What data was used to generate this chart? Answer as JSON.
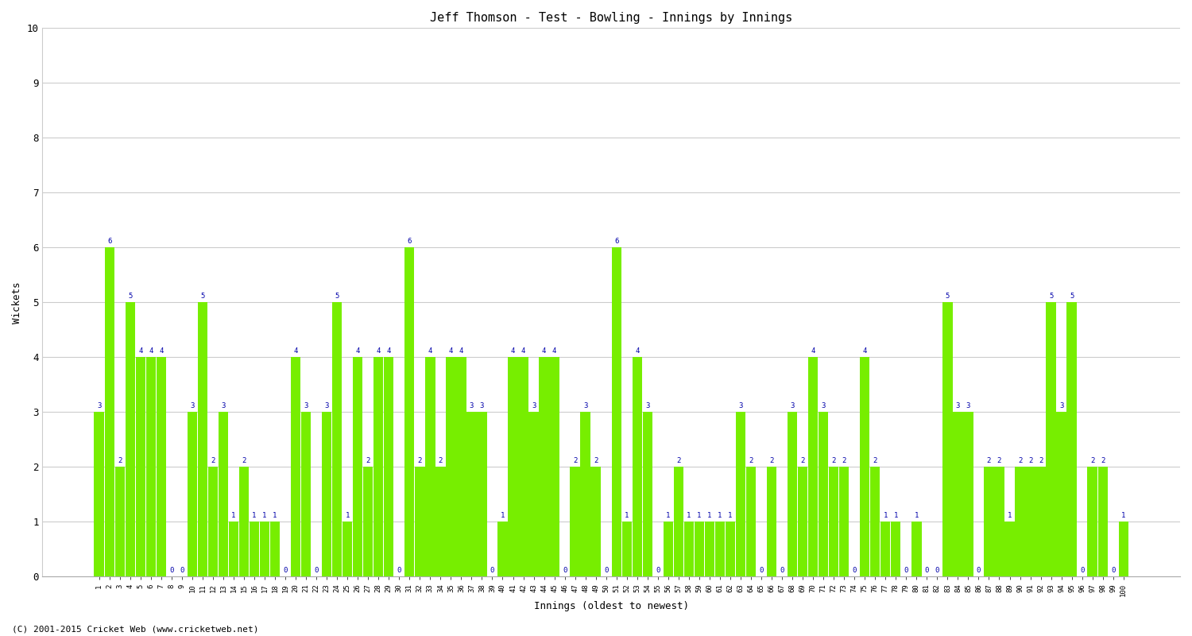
{
  "title": "Jeff Thomson - Test - Bowling - Innings by Innings",
  "xlabel": "Innings (oldest to newest)",
  "ylabel": "Wickets",
  "bar_color": "#77ee00",
  "label_color": "#0000aa",
  "background_color": "#ffffff",
  "plot_background": "#ffffff",
  "grid_color": "#cccccc",
  "ylim": [
    0,
    10
  ],
  "yticks": [
    0,
    1,
    2,
    3,
    4,
    5,
    6,
    7,
    8,
    9,
    10
  ],
  "footer": "(C) 2001-2015 Cricket Web (www.cricketweb.net)",
  "categories": [
    "1",
    "2",
    "3",
    "4",
    "5",
    "6",
    "7",
    "8",
    "9",
    "10",
    "11",
    "12",
    "13",
    "14",
    "15",
    "16",
    "17",
    "18",
    "19",
    "20",
    "21",
    "22",
    "23",
    "24",
    "25",
    "26",
    "27",
    "28",
    "29",
    "30",
    "31",
    "32",
    "33",
    "34",
    "35",
    "36",
    "37",
    "38",
    "39",
    "40",
    "41",
    "42",
    "43",
    "44",
    "45",
    "46",
    "47",
    "48",
    "49",
    "50",
    "51",
    "52",
    "53",
    "54",
    "55",
    "56",
    "57",
    "58",
    "59",
    "60",
    "61",
    "62",
    "63",
    "64",
    "65",
    "66",
    "67",
    "68",
    "69",
    "70",
    "71",
    "72",
    "73",
    "74",
    "75",
    "76",
    "77",
    "78",
    "79",
    "80",
    "81",
    "82",
    "83",
    "84",
    "85",
    "86",
    "87",
    "88",
    "89",
    "90",
    "91",
    "92",
    "93",
    "94",
    "95",
    "96",
    "97",
    "98",
    "99",
    "100"
  ],
  "values": [
    3,
    6,
    2,
    5,
    4,
    4,
    4,
    0,
    0,
    3,
    5,
    2,
    3,
    1,
    2,
    1,
    1,
    1,
    0,
    4,
    3,
    0,
    3,
    5,
    1,
    4,
    2,
    4,
    4,
    0,
    6,
    2,
    4,
    2,
    4,
    4,
    3,
    3,
    0,
    1,
    4,
    4,
    3,
    4,
    4,
    0,
    2,
    3,
    2,
    0,
    6,
    1,
    4,
    3,
    0,
    1,
    2,
    1,
    1,
    1,
    1,
    1,
    3,
    2,
    0,
    2,
    0,
    3,
    2,
    4,
    3,
    2,
    2,
    0,
    4,
    2,
    1,
    1,
    0,
    1,
    0,
    0,
    5,
    3,
    3,
    0,
    2,
    2,
    1,
    2,
    2,
    2,
    5,
    3,
    5,
    0,
    2,
    2,
    0,
    1
  ]
}
